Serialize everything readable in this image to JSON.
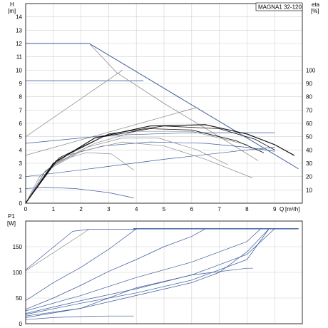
{
  "chart_data": [
    {
      "type": "line",
      "title": "MAGNA1 32-120",
      "ylabel": "H",
      "ylabel_unit": "[m]",
      "y2label": "eta",
      "y2label_unit": "[%]",
      "xlabel": "Q",
      "xlabel_unit": "[m³/h]",
      "xlim": [
        0,
        10
      ],
      "ylim": [
        0,
        15
      ],
      "y2lim": [
        0,
        150
      ],
      "xticks": [
        "0",
        "1",
        "2",
        "3",
        "4",
        "5",
        "6",
        "7",
        "8",
        "9"
      ],
      "yticks": [
        "0",
        "1",
        "2",
        "3",
        "4",
        "5",
        "6",
        "7",
        "8",
        "9",
        "10",
        "11",
        "12",
        "13",
        "14"
      ],
      "y2ticks": [
        "10",
        "20",
        "30",
        "40",
        "50",
        "60",
        "70",
        "80",
        "90",
        "100"
      ],
      "grid": true,
      "colors": {
        "blue": "#3a5a9c",
        "gray": "#8c8c8c",
        "black": "#111111"
      },
      "series": [
        {
          "color": "blue",
          "width": 1.0,
          "points": [
            [
              0,
              12
            ],
            [
              2.3,
              12
            ],
            [
              9.85,
              2.6
            ]
          ]
        },
        {
          "color": "blue",
          "width": 0.8,
          "points": [
            [
              0,
              9.2
            ],
            [
              4.25,
              9.2
            ]
          ]
        },
        {
          "color": "gray",
          "width": 0.8,
          "points": [
            [
              0,
              5.0
            ],
            [
              3.5,
              10.0
            ]
          ]
        },
        {
          "color": "gray",
          "width": 0.8,
          "points": [
            [
              2.3,
              12
            ],
            [
              3.3,
              9.8
            ],
            [
              5.0,
              7.5
            ],
            [
              7.0,
              5.0
            ],
            [
              8.4,
              3.2
            ]
          ]
        },
        {
          "color": "gray",
          "width": 0.8,
          "points": [
            [
              0,
              3.6
            ],
            [
              6.2,
              7.2
            ]
          ]
        },
        {
          "color": "blue",
          "width": 0.7,
          "points": [
            [
              0,
              4.5
            ],
            [
              3.0,
              5.1
            ],
            [
              6.0,
              5.3
            ],
            [
              9.0,
              5.3
            ]
          ]
        },
        {
          "color": "blue",
          "width": 0.7,
          "points": [
            [
              0,
              2.0
            ],
            [
              2.0,
              2.5
            ],
            [
              5.0,
              3.3
            ],
            [
              8.0,
              4.0
            ],
            [
              9.0,
              4.2
            ]
          ]
        },
        {
          "color": "blue",
          "width": 0.7,
          "points": [
            [
              0,
              1.1
            ],
            [
              0.7,
              1.2
            ],
            [
              1.8,
              1.1
            ],
            [
              3.0,
              0.8
            ],
            [
              3.9,
              0.4
            ]
          ]
        },
        {
          "color": "blue",
          "width": 0.7,
          "points": [
            [
              0,
              0
            ],
            [
              0.7,
              2.4
            ],
            [
              1.5,
              3.6
            ],
            [
              2.8,
              4.3
            ],
            [
              4.5,
              4.6
            ],
            [
              6.5,
              4.5
            ],
            [
              8.0,
              4.2
            ],
            [
              9.0,
              3.9
            ]
          ]
        },
        {
          "color": "gray",
          "width": 0.7,
          "points": [
            [
              0,
              0
            ],
            [
              0.5,
              2.0
            ],
            [
              1.2,
              3.2
            ],
            [
              2.2,
              3.8
            ],
            [
              3.1,
              3.7
            ],
            [
              3.9,
              2.5
            ]
          ]
        },
        {
          "color": "gray",
          "width": 0.7,
          "points": [
            [
              0,
              0
            ],
            [
              0.8,
              2.5
            ],
            [
              2.0,
              3.9
            ],
            [
              3.5,
              4.6
            ],
            [
              5.0,
              4.3
            ],
            [
              6.5,
              3.3
            ],
            [
              8.2,
              1.9
            ]
          ]
        },
        {
          "color": "gray",
          "width": 0.7,
          "points": [
            [
              0,
              0
            ],
            [
              1.0,
              2.9
            ],
            [
              2.5,
              4.5
            ],
            [
              4.0,
              5.4
            ],
            [
              6.0,
              5.4
            ],
            [
              8.0,
              4.4
            ]
          ]
        },
        {
          "color": "gray",
          "width": 0.7,
          "points": [
            [
              0,
              0
            ],
            [
              0.9,
              2.7
            ],
            [
              2.2,
              4.2
            ],
            [
              3.5,
              4.9
            ],
            [
              4.8,
              4.9
            ],
            [
              6.2,
              4.0
            ],
            [
              7.3,
              2.9
            ]
          ]
        },
        {
          "color": "black",
          "width": 1.2,
          "points": [
            [
              0,
              0
            ],
            [
              1.0,
              3.0
            ],
            [
              2.5,
              4.9
            ],
            [
              4.5,
              5.8
            ],
            [
              6.5,
              5.9
            ],
            [
              8.0,
              5.2
            ],
            [
              9.0,
              4.4
            ],
            [
              9.7,
              3.6
            ]
          ]
        },
        {
          "color": "black",
          "width": 0.8,
          "points": [
            [
              0,
              0
            ],
            [
              1.2,
              3.4
            ],
            [
              3.0,
              5.2
            ],
            [
              5.0,
              5.8
            ],
            [
              7.0,
              5.6
            ],
            [
              8.3,
              4.8
            ],
            [
              9.0,
              4.0
            ]
          ]
        },
        {
          "color": "black",
          "width": 0.8,
          "points": [
            [
              0,
              0
            ],
            [
              1.1,
              3.2
            ],
            [
              2.8,
              5.0
            ],
            [
              4.5,
              5.6
            ],
            [
              6.0,
              5.5
            ],
            [
              7.6,
              4.7
            ],
            [
              8.6,
              3.8
            ]
          ]
        }
      ]
    },
    {
      "type": "line",
      "ylabel": "P1",
      "ylabel_unit": "[W]",
      "xlim": [
        0,
        10
      ],
      "ylim": [
        0,
        200
      ],
      "yticks": [
        "0",
        "50",
        "100",
        "150"
      ],
      "grid": true,
      "series": [
        {
          "color": "blue",
          "width": 1.3,
          "points": [
            [
              3.9,
              185
            ],
            [
              9.85,
              185
            ]
          ]
        },
        {
          "color": "blue",
          "width": 0.7,
          "points": [
            [
              0,
              105
            ],
            [
              1.7,
              180
            ],
            [
              2.3,
              184
            ],
            [
              4.0,
              184
            ]
          ]
        },
        {
          "color": "gray",
          "width": 0.7,
          "points": [
            [
              0,
              103
            ],
            [
              2.3,
              184
            ]
          ]
        },
        {
          "color": "blue",
          "width": 0.7,
          "points": [
            [
              0,
              45
            ],
            [
              1.0,
              80
            ],
            [
              2.0,
              110
            ],
            [
              3.0,
              145
            ],
            [
              4.0,
              185
            ]
          ]
        },
        {
          "color": "blue",
          "width": 0.7,
          "points": [
            [
              0,
              28
            ],
            [
              1.0,
              50
            ],
            [
              2.0,
              75
            ],
            [
              3.0,
              102
            ],
            [
              4.0,
              125
            ],
            [
              5.0,
              150
            ],
            [
              6.0,
              170
            ],
            [
              6.5,
              185
            ]
          ]
        },
        {
          "color": "blue",
          "width": 0.7,
          "points": [
            [
              0,
              25
            ],
            [
              2.0,
              55
            ],
            [
              4.0,
              90
            ],
            [
              6.0,
              120
            ],
            [
              7.0,
              140
            ],
            [
              8.0,
              160
            ],
            [
              8.5,
              185
            ]
          ]
        },
        {
          "color": "blue",
          "width": 0.7,
          "points": [
            [
              0,
              20
            ],
            [
              2.0,
              45
            ],
            [
              4.0,
              68
            ],
            [
              6.0,
              95
            ],
            [
              8.0,
              135
            ],
            [
              9.0,
              185
            ]
          ]
        },
        {
          "color": "blue",
          "width": 0.7,
          "points": [
            [
              0,
              18
            ],
            [
              2.0,
              40
            ],
            [
              4.0,
              60
            ],
            [
              6.0,
              85
            ],
            [
              8.0,
              125
            ],
            [
              8.8,
              185
            ]
          ]
        },
        {
          "color": "blue",
          "width": 0.7,
          "points": [
            [
              0,
              15
            ],
            [
              2.0,
              30
            ],
            [
              4.0,
              55
            ],
            [
              6.0,
              80
            ],
            [
              7.0,
              100
            ],
            [
              8.0,
              140
            ],
            [
              8.8,
              185
            ]
          ]
        },
        {
          "color": "blue",
          "width": 0.7,
          "points": [
            [
              0,
              12
            ],
            [
              2.0,
              30
            ],
            [
              4.0,
              70
            ],
            [
              6.0,
              95
            ],
            [
              8.0,
              108
            ],
            [
              8.2,
              108
            ]
          ]
        },
        {
          "color": "blue",
          "width": 0.7,
          "points": [
            [
              0,
              8
            ],
            [
              1.0,
              12
            ],
            [
              2.0,
              14
            ],
            [
              3.0,
              15
            ],
            [
              3.9,
              15
            ]
          ]
        }
      ]
    }
  ]
}
